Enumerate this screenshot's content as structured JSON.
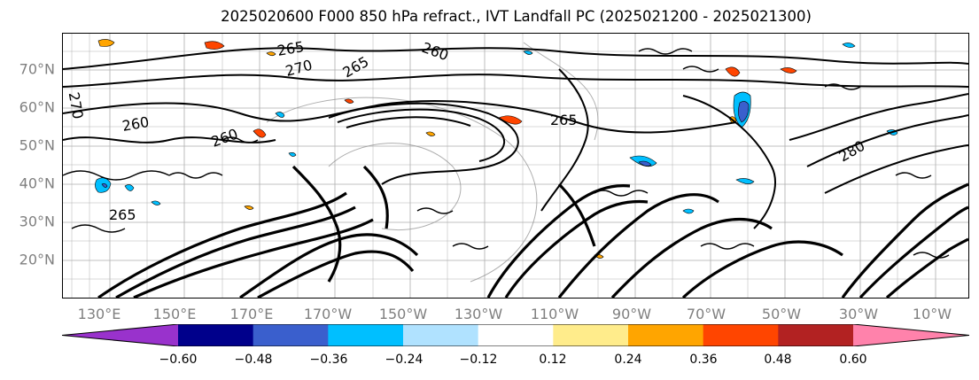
{
  "title": "2025020600 F000 850 hPa refract., IVT Landfall PC (2025021200 - 2025021300)",
  "map": {
    "lat_labels": [
      "70°N",
      "60°N",
      "50°N",
      "40°N",
      "30°N",
      "20°N"
    ],
    "lon_labels": [
      "130°E",
      "150°E",
      "170°E",
      "170°W",
      "150°W",
      "130°W",
      "110°W",
      "90°W",
      "70°W",
      "50°W",
      "30°W",
      "10°W"
    ],
    "contour_labels": [
      "265",
      "260",
      "270",
      "265",
      "260",
      "270",
      "265",
      "260",
      "265",
      "280"
    ],
    "colors": {
      "contour": "#000000",
      "gridline": "#9a9a9a",
      "axis_label": "#7f7f7f"
    }
  },
  "colorbar": {
    "ticks": [
      "−0.60",
      "−0.48",
      "−0.36",
      "−0.24",
      "−0.12",
      "0.12",
      "0.24",
      "0.36",
      "0.48",
      "0.60"
    ],
    "colors": [
      "#9932cc",
      "#00008b",
      "#3a5fcd",
      "#00bfff",
      "#b0e2ff",
      "#ffffff",
      "#ffec8b",
      "#ffa500",
      "#ff4500",
      "#b22222",
      "#ff82ab"
    ]
  }
}
